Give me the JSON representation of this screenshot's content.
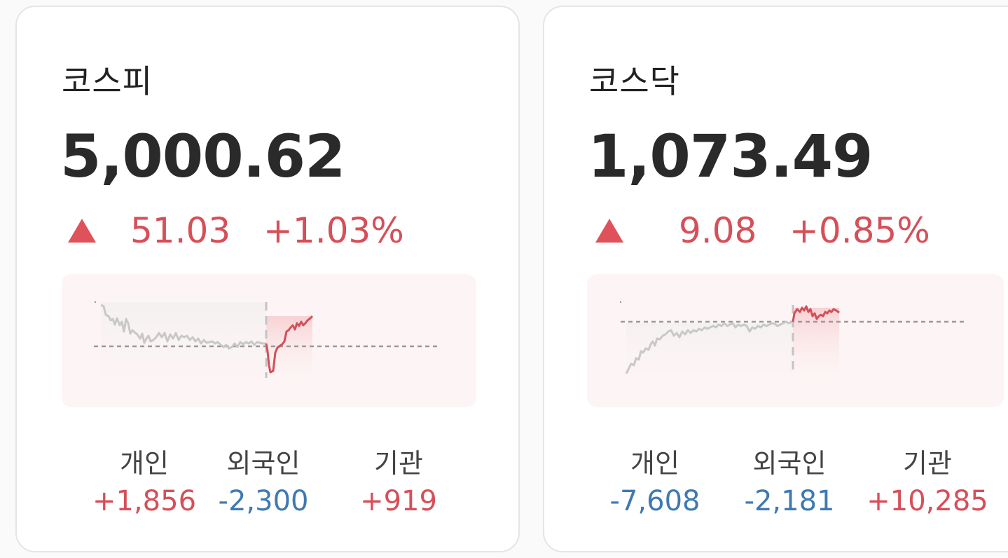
{
  "colors": {
    "up": "#d64f58",
    "down": "#3f79b3",
    "line_before": "#c8c8c8",
    "line_after": "#d0505a",
    "baseline": "#9a9a9a"
  },
  "cards": [
    {
      "name": "코스피",
      "value": "5,000.62",
      "direction_icon": "up-triangle-icon",
      "change_abs": "51.03",
      "change_pct": "+1.03%",
      "investors": [
        {
          "label": "개인",
          "value": "+1,856",
          "sign": "pos"
        },
        {
          "label": "외국인",
          "value": "-2,300",
          "sign": "neg"
        },
        {
          "label": "기관",
          "value": "+919",
          "sign": "pos"
        }
      ]
    },
    {
      "name": "코스닥",
      "value": "1,073.49",
      "direction_icon": "up-triangle-icon",
      "change_abs": "9.08",
      "change_pct": "+0.85%",
      "investors": [
        {
          "label": "개인",
          "value": "-7,608",
          "sign": "neg"
        },
        {
          "label": "외국인",
          "value": "-2,181",
          "sign": "neg"
        },
        {
          "label": "기관",
          "value": "+10,285",
          "sign": "pos"
        }
      ]
    }
  ]
}
